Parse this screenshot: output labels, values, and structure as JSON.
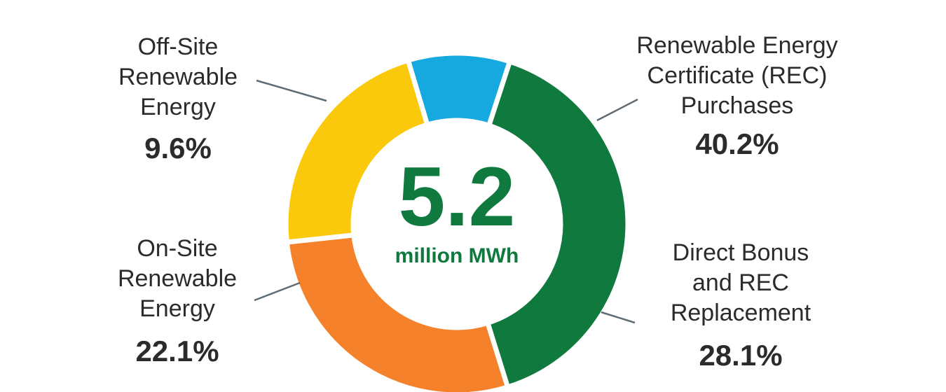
{
  "chart_data": {
    "type": "pie",
    "style": "donut",
    "start_angle_deg": 18,
    "direction": "clockwise",
    "slices": [
      {
        "label": [
          "Renewable Energy",
          "Certificate (REC)",
          "Purchases"
        ],
        "value": 40.2,
        "value_label": "40.2%",
        "color": "#107a3e"
      },
      {
        "label": [
          "Direct Bonus",
          "and REC",
          "Replacement"
        ],
        "value": 28.1,
        "value_label": "28.1%",
        "color": "#f5822a"
      },
      {
        "label": [
          "On-Site",
          "Renewable",
          "Energy"
        ],
        "value": 22.1,
        "value_label": "22.1%",
        "color": "#fbc90b"
      },
      {
        "label": [
          "Off-Site",
          "Renewable",
          "Energy"
        ],
        "value": 9.6,
        "value_label": "9.6%",
        "color": "#16a9df"
      }
    ],
    "center": {
      "value": "5.2",
      "unit": "million MWh",
      "color": "#107a3e"
    },
    "leader_color": "#5d6b75"
  }
}
